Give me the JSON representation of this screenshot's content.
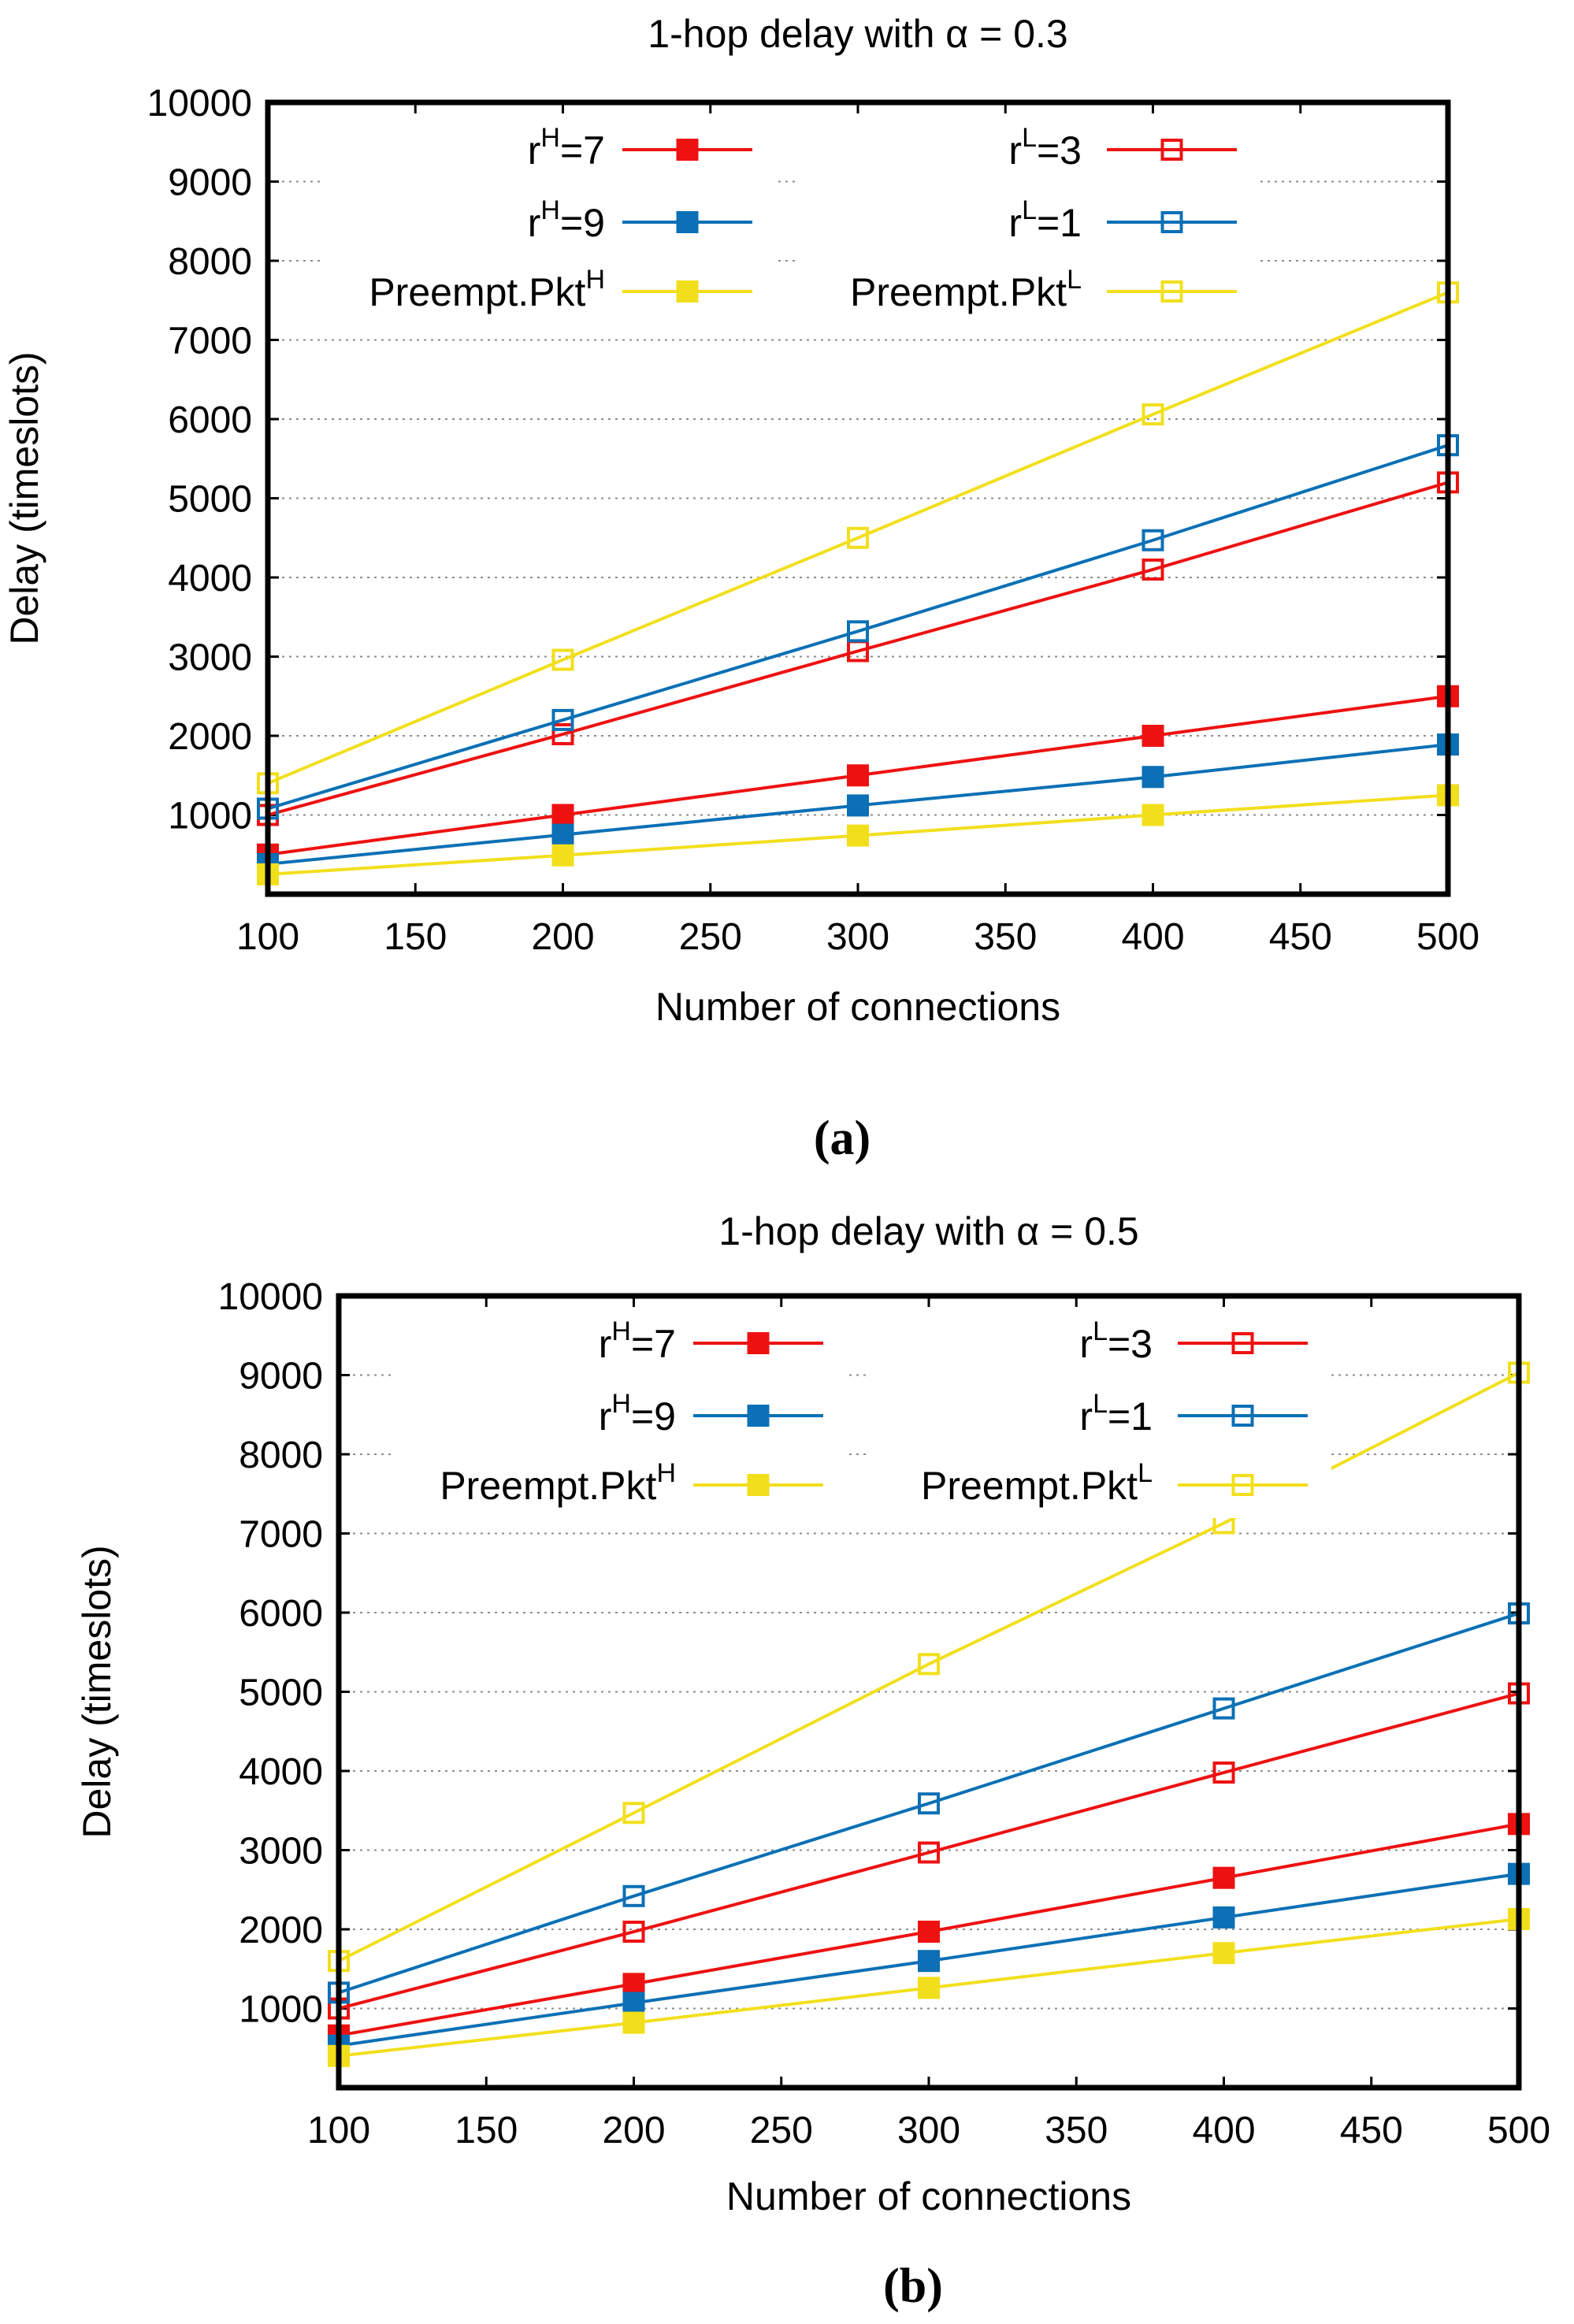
{
  "chart_data": [
    {
      "type": "line",
      "title": "1-hop delay with α = 0.3",
      "caption": "(a)",
      "xlabel": "Number of connections",
      "ylabel": "Delay (timeslots)",
      "xlim": [
        100,
        500
      ],
      "ylim": [
        0,
        10000
      ],
      "xticks": [
        100,
        150,
        200,
        250,
        300,
        350,
        400,
        450,
        500
      ],
      "yticks": [
        1000,
        2000,
        3000,
        4000,
        5000,
        6000,
        7000,
        8000,
        9000,
        10000
      ],
      "grid": "horizontal dotted",
      "x": [
        100,
        200,
        300,
        400,
        500
      ],
      "series": [
        {
          "name": "rH=7",
          "base": "r",
          "sup": "H",
          "tail": "=7",
          "color": "#ee1111",
          "marker": "filled-square",
          "values": [
            500,
            1000,
            1500,
            2000,
            2500
          ]
        },
        {
          "name": "rH=9",
          "base": "r",
          "sup": "H",
          "tail": "=9",
          "color": "#0b70b5",
          "marker": "filled-square",
          "values": [
            380,
            750,
            1120,
            1480,
            1890
          ]
        },
        {
          "name": "Preempt.PktH",
          "base": "Preempt.Pkt",
          "sup": "H",
          "tail": "",
          "color": "#f2df1c",
          "marker": "filled-square",
          "values": [
            250,
            490,
            740,
            1000,
            1250
          ]
        },
        {
          "name": "rL=3",
          "base": "r",
          "sup": "L",
          "tail": "=3",
          "color": "#ee1111",
          "marker": "open-square",
          "values": [
            1000,
            2020,
            3070,
            4100,
            5200
          ]
        },
        {
          "name": "rL=1",
          "base": "r",
          "sup": "L",
          "tail": "=1",
          "color": "#0b70b5",
          "marker": "open-square",
          "values": [
            1080,
            2200,
            3320,
            4470,
            5670
          ]
        },
        {
          "name": "Preempt.PktL",
          "base": "Preempt.Pkt",
          "sup": "L",
          "tail": "",
          "color": "#f2df1c",
          "marker": "open-square",
          "values": [
            1400,
            2960,
            4500,
            6060,
            7600
          ]
        }
      ]
    },
    {
      "type": "line",
      "title": "1-hop delay with α = 0.5",
      "caption": "(b)",
      "xlabel": "Number of connections",
      "ylabel": "Delay (timeslots)",
      "xlim": [
        100,
        500
      ],
      "ylim": [
        0,
        10000
      ],
      "xticks": [
        100,
        150,
        200,
        250,
        300,
        350,
        400,
        450,
        500
      ],
      "yticks": [
        1000,
        2000,
        3000,
        4000,
        5000,
        6000,
        7000,
        8000,
        9000,
        10000
      ],
      "grid": "horizontal dotted",
      "x": [
        100,
        200,
        300,
        400,
        500
      ],
      "series": [
        {
          "name": "rH=7",
          "base": "r",
          "sup": "H",
          "tail": "=7",
          "color": "#ee1111",
          "marker": "filled-square",
          "values": [
            660,
            1310,
            1970,
            2650,
            3330
          ]
        },
        {
          "name": "rH=9",
          "base": "r",
          "sup": "H",
          "tail": "=9",
          "color": "#0b70b5",
          "marker": "filled-square",
          "values": [
            530,
            1070,
            1600,
            2150,
            2700
          ]
        },
        {
          "name": "Preempt.PktH",
          "base": "Preempt.Pkt",
          "sup": "H",
          "tail": "",
          "color": "#f2df1c",
          "marker": "filled-square",
          "values": [
            400,
            820,
            1260,
            1700,
            2130
          ]
        },
        {
          "name": "rL=3",
          "base": "r",
          "sup": "L",
          "tail": "=3",
          "color": "#ee1111",
          "marker": "open-square",
          "values": [
            1000,
            1970,
            2970,
            3980,
            4980
          ]
        },
        {
          "name": "rL=1",
          "base": "r",
          "sup": "L",
          "tail": "=1",
          "color": "#0b70b5",
          "marker": "open-square",
          "values": [
            1200,
            2420,
            3590,
            4790,
            5990
          ]
        },
        {
          "name": "Preempt.PktL",
          "base": "Preempt.Pkt",
          "sup": "L",
          "tail": "",
          "color": "#f2df1c",
          "marker": "open-square",
          "values": [
            1600,
            3470,
            5350,
            7130,
            9030
          ]
        }
      ]
    }
  ]
}
